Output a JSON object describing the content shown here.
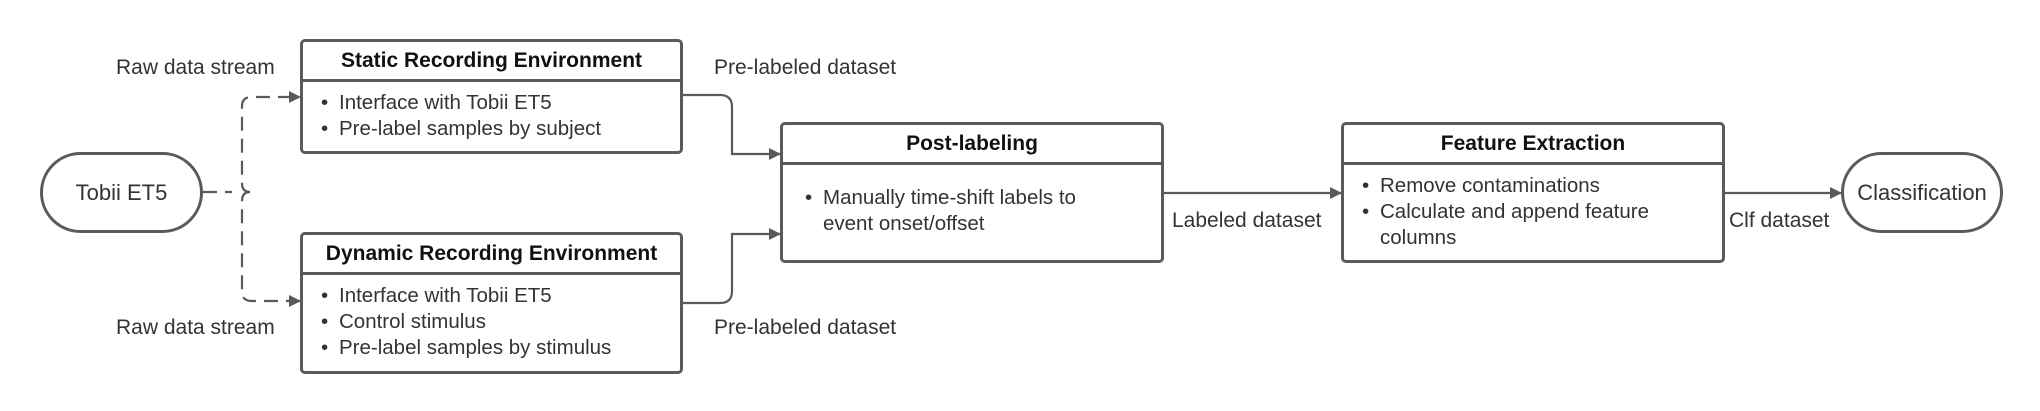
{
  "nodes": {
    "source": {
      "label": "Tobii ET5"
    },
    "static_env": {
      "title": "Static Recording Environment",
      "items": [
        "Interface with Tobii ET5",
        "Pre-label samples by subject"
      ]
    },
    "dynamic_env": {
      "title": "Dynamic Recording Environment",
      "items": [
        "Interface with Tobii ET5",
        "Control stimulus",
        "Pre-label samples by stimulus"
      ]
    },
    "post_labeling": {
      "title": "Post-labeling",
      "items": [
        "Manually time-shift labels to event onset/offset"
      ]
    },
    "feature_extraction": {
      "title": "Feature Extraction",
      "items": [
        "Remove contaminations",
        "Calculate and append feature columns"
      ]
    },
    "sink": {
      "label": "Classification"
    }
  },
  "edge_labels": {
    "raw_top": "Raw data stream",
    "raw_bottom": "Raw data stream",
    "prelabeled_top": "Pre-labeled dataset",
    "prelabeled_bottom": "Pre-labeled dataset",
    "labeled": "Labeled dataset",
    "clf": "Clf dataset"
  },
  "colors": {
    "stroke": "#5a5a5a",
    "text": "#333333",
    "title": "#111111"
  }
}
